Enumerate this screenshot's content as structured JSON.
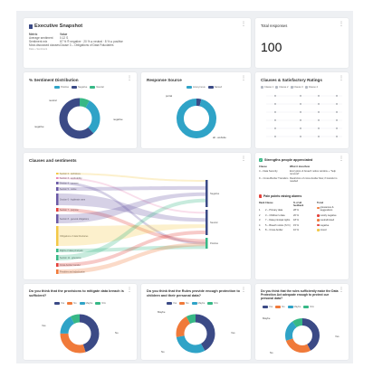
{
  "colors": {
    "navy": "#3b4a86",
    "teal": "#2fa3c7",
    "green": "#37b886",
    "orange": "#f07a3a",
    "red": "#e4413b",
    "yellow": "#f3c847",
    "gray": "#b4b9c2",
    "purple": "#6b5aa6",
    "pink": "#e889b6"
  },
  "snapshot": {
    "title": "Executive Snapshot",
    "icon": "document-icon",
    "metric_header": "Metric",
    "value_header": "Value",
    "rows": [
      {
        "metric": "Average sentiment",
        "value": "0.12 S"
      },
      {
        "metric": "Sentiment mix",
        "value": "67 % ® negative · 20 % ● neutral · 8 % ● positive"
      },
      {
        "metric": "Most-discussed clauses",
        "value": "Clause 3 – Obligations of Data Fiduciaries"
      }
    ],
    "footnote": "Data + Sentiment"
  },
  "total": {
    "title": "Total responses",
    "value": "100"
  },
  "sentiment_distribution": {
    "title": "% Sentiment Distribution",
    "legend": [
      "Positive",
      "Negative",
      "Neutral"
    ],
    "labels": [
      "neutral",
      "negative",
      "negative"
    ]
  },
  "response_source": {
    "title": "Response Source",
    "legend": [
      "Anonymous",
      "Named"
    ],
    "labels": [
      "portal",
      "all - website"
    ]
  },
  "clauses_ratings": {
    "title": "Clauses & Satisfactory Ratings",
    "legend": [
      "Clause 1",
      "Clause 2",
      "Clause 3",
      "Clause 4"
    ]
  },
  "sankey": {
    "title": "Clauses and sentiments",
    "left": [
      "Section 2 - definitions",
      "Section 3 - applicability",
      "Section 4 - consent",
      "Section 5 - notice",
      "Section 6 - legitimate uses",
      "Section 7 - purpose",
      "Section 8 - general obligations",
      "Obligations of data fiduciaries",
      "Rights of data principals",
      "Section 11 - grievance",
      "Cross-border transfer",
      "Penalties and adjudication"
    ],
    "right": [
      "Negative",
      "Neutral",
      "Positive"
    ]
  },
  "strengths": {
    "title": "Strengths people appreciated",
    "col1": "Clause",
    "col2": "What it does/how",
    "rows": [
      {
        "clause": "4 – Data Security",
        "desc": "Encryption & breach notice window + \"help removal\""
      },
      {
        "clause": "9 – Cross-Border Transfers",
        "desc": "Restriction of cross-border flow; if transfer is needed"
      }
    ],
    "pain_title": "Pain points raising alarms",
    "pain_cols": [
      "Rank",
      "Clause",
      "% of all feedback",
      "Trend"
    ],
    "pain_rows": [
      {
        "rank": "1",
        "clause": "2 – Primary data",
        "pct": "28 %"
      },
      {
        "rank": "2",
        "clause": "3 – Children's data",
        "pct": "20 %"
      },
      {
        "rank": "3",
        "clause": "7 – Data principal rights",
        "pct": "18 %"
      },
      {
        "rank": "4",
        "clause": "5 – Breach notice (72 h)",
        "pct": "15 %"
      },
      {
        "rank": "5",
        "clause": "8 – Cross-border",
        "pct": "10 %"
      }
    ],
    "trend_legend": [
      "grievances & suggestions",
      "mostly negative",
      "neutral/mixed",
      "negative",
      "mixed"
    ]
  },
  "q1": {
    "title": "Do you think that the provisions to mitigate data breach is sufficient?",
    "legend": [
      "Yes",
      "No",
      "Maybe",
      "N/A"
    ],
    "labels": [
      "Yes",
      "No"
    ]
  },
  "q2": {
    "title": "Do you think that the Rules provide enough protection to children and their personal data?",
    "legend": [
      "Yes",
      "No",
      "Maybe",
      "N/A"
    ],
    "labels": [
      "Maybe",
      "Yes",
      "No"
    ]
  },
  "q3": {
    "title": "Do you think that the rules sufficiently make the Data Protection Act adequate enough to protect our personal data?",
    "legend": [
      "Yes",
      "No",
      "Maybe",
      "N/A"
    ],
    "labels": [
      "Maybe",
      "Yes",
      "No"
    ]
  }
}
